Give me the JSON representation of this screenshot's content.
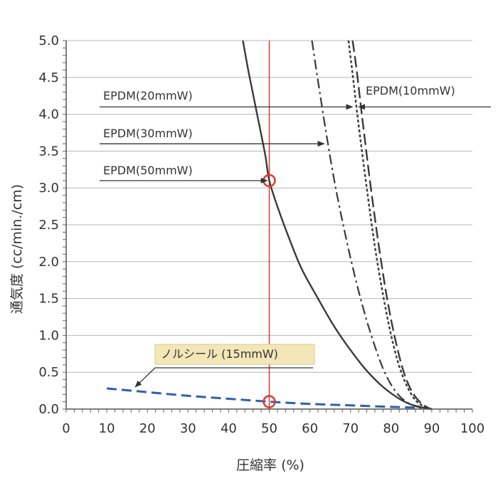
{
  "chart_data": {
    "type": "line",
    "title": "",
    "xlabel": "圧縮率 (%)",
    "ylabel": "通気度 (cc/min./cm)",
    "xlim": [
      0,
      100
    ],
    "ylim": [
      0,
      5.0
    ],
    "grid": true,
    "x_ticks": [
      "0",
      "10",
      "20",
      "30",
      "40",
      "50",
      "60",
      "70",
      "80",
      "90",
      "100"
    ],
    "y_ticks": [
      "0.0",
      "0.5",
      "1.0",
      "1.5",
      "2.0",
      "2.5",
      "3.0",
      "3.5",
      "4.0",
      "4.5",
      "5.0"
    ],
    "reference_line": {
      "x": 50,
      "color": "#e0392b"
    },
    "series": [
      {
        "name": "EPDM(50mmW)",
        "style": "solid",
        "color": "#3a3a3a",
        "x": [
          43.5,
          45,
          47,
          49,
          50,
          52,
          55,
          58,
          62,
          66,
          70,
          74,
          78,
          82,
          85,
          88,
          90
        ],
        "y": [
          5.0,
          4.55,
          4.0,
          3.45,
          3.1,
          2.75,
          2.3,
          1.9,
          1.5,
          1.12,
          0.8,
          0.52,
          0.3,
          0.14,
          0.06,
          0.02,
          0.0
        ]
      },
      {
        "name": "EPDM(30mmW)",
        "style": "dashdot",
        "color": "#3a3a3a",
        "x": [
          60.5,
          62,
          64,
          66,
          68,
          70,
          72,
          74,
          76,
          78,
          80,
          82,
          84,
          86,
          88,
          90
        ],
        "y": [
          5.0,
          4.45,
          3.75,
          3.1,
          2.55,
          2.05,
          1.6,
          1.2,
          0.85,
          0.55,
          0.33,
          0.18,
          0.09,
          0.04,
          0.01,
          0.0
        ]
      },
      {
        "name": "EPDM(20mmW)",
        "style": "dotted",
        "color": "#3a3a3a",
        "x": [
          69.5,
          70.5,
          72,
          74,
          76,
          78,
          80,
          82,
          84,
          86,
          88,
          90
        ],
        "y": [
          5.0,
          4.55,
          3.85,
          3.0,
          2.2,
          1.55,
          1.0,
          0.58,
          0.3,
          0.12,
          0.04,
          0.0
        ]
      },
      {
        "name": "EPDM(10mmW)",
        "style": "longdash",
        "color": "#3a3a3a",
        "x": [
          70.5,
          71.5,
          73,
          75,
          77,
          79,
          81,
          83,
          85,
          87,
          89,
          90
        ],
        "y": [
          5.0,
          4.6,
          3.9,
          3.0,
          2.2,
          1.5,
          0.95,
          0.52,
          0.25,
          0.1,
          0.02,
          0.0
        ]
      },
      {
        "name": "ノルシール (15mmW)",
        "style": "dashed",
        "color": "#2f5fae",
        "x": [
          10,
          20,
          30,
          40,
          50,
          60,
          70,
          80,
          87
        ],
        "y": [
          0.28,
          0.23,
          0.18,
          0.14,
          0.1,
          0.07,
          0.05,
          0.03,
          0.02
        ]
      }
    ],
    "markers": [
      {
        "x": 50,
        "y": 3.1,
        "color": "#e0392b"
      },
      {
        "x": 50,
        "y": 0.1,
        "color": "#e0392b"
      }
    ],
    "annotations": [
      {
        "id": "a50",
        "text": "EPDM(50mmW)",
        "target_series": "EPDM(50mmW)",
        "arrow_to": [
          49.5,
          3.1
        ]
      },
      {
        "id": "a30",
        "text": "EPDM(30mmW)",
        "target_series": "EPDM(30mmW)",
        "arrow_to": [
          63.5,
          3.6
        ]
      },
      {
        "id": "a20",
        "text": "EPDM(20mmW)",
        "target_series": "EPDM(20mmW)",
        "arrow_to": [
          70.5,
          4.1
        ]
      },
      {
        "id": "a10",
        "text": "EPDM(10mmW)",
        "target_series": "EPDM(10mmW)",
        "arrow_to": [
          72.0,
          4.1
        ]
      },
      {
        "id": "anor",
        "text": "ノルシール (15mmW)",
        "target_series": "ノルシール (15mmW)",
        "arrow_to": [
          17,
          0.3
        ],
        "highlight": "#f3e7b8"
      }
    ]
  }
}
